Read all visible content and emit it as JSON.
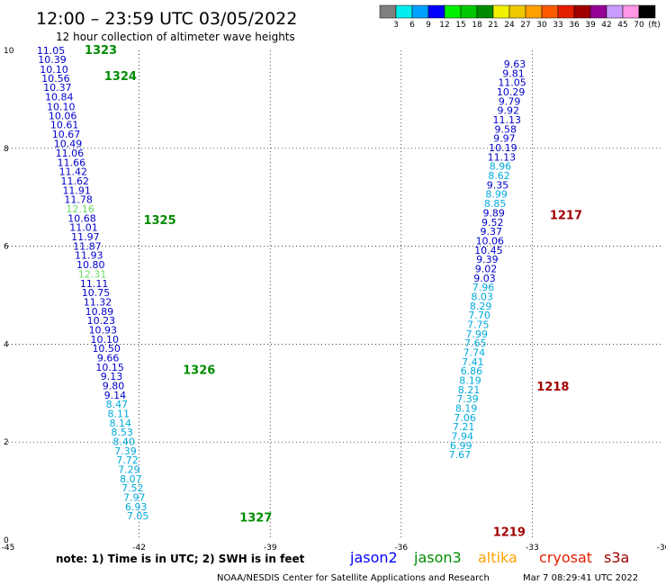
{
  "header": {
    "title": "12:00 – 23:59 UTC 03/05/2022",
    "subtitle": "12 hour collection of altimeter wave heights"
  },
  "colorbar": {
    "ticks": [
      "3",
      "6",
      "9",
      "12",
      "15",
      "18",
      "21",
      "24",
      "27",
      "30",
      "33",
      "36",
      "39",
      "42",
      "45",
      "70"
    ],
    "unit": "(ft)",
    "colors": [
      "#808080",
      "#00eeee",
      "#00a0ff",
      "#0000ff",
      "#00ee00",
      "#00c800",
      "#008c00",
      "#f0f000",
      "#f0c800",
      "#ffa000",
      "#ff5a00",
      "#e61e00",
      "#a00000",
      "#960096",
      "#c89bff",
      "#ff96e6",
      "#000000"
    ]
  },
  "footer": {
    "note": "note:  1) Time is in UTC;  2) SWH is in feet",
    "legend": [
      {
        "label": "jason2",
        "color": "#0000ff"
      },
      {
        "label": "jason3",
        "color": "#008c00"
      },
      {
        "label": "altika",
        "color": "#ffa000"
      },
      {
        "label": "cryosat",
        "color": "#e61e00"
      },
      {
        "label": "s3a",
        "color": "#a00000"
      }
    ],
    "credit": "NOAA/NESDIS Center for Satellite Applications and Research",
    "timestamp": "Mar  7 08:29:41 UTC 2022"
  },
  "chart_data": {
    "type": "scatter",
    "xlim": [
      -45,
      -30
    ],
    "ylim": [
      0,
      10
    ],
    "xticks": [
      "-45",
      "-42",
      "-39",
      "-36",
      "-33",
      "-30"
    ],
    "yticks": [
      "0",
      "2",
      "4",
      "6",
      "8",
      "10"
    ],
    "grid": true,
    "colors": {
      "deep": "#0000cc",
      "light": "#00aadd",
      "green": "#66dd66",
      "pass_green": "#008c00",
      "pass_red": "#a00000"
    },
    "passes": [
      {
        "label": "1323",
        "x": -43.25,
        "y": 9.93,
        "color": "pass_green"
      },
      {
        "label": "1324",
        "x": -42.8,
        "y": 9.39,
        "color": "pass_green"
      },
      {
        "label": "1325",
        "x": -41.9,
        "y": 6.45,
        "color": "pass_green"
      },
      {
        "label": "1326",
        "x": -41.0,
        "y": 3.39,
        "color": "pass_green"
      },
      {
        "label": "1327",
        "x": -39.7,
        "y": 0.38,
        "color": "pass_green"
      },
      {
        "label": "1217",
        "x": -32.6,
        "y": 6.55,
        "color": "pass_red"
      },
      {
        "label": "1218",
        "x": -32.9,
        "y": 3.05,
        "color": "pass_red"
      },
      {
        "label": "1219",
        "x": -33.9,
        "y": 0.08,
        "color": "pass_red"
      }
    ],
    "series": [
      {
        "points": [
          {
            "x": -44.02,
            "y": 9.93,
            "v": "11.05",
            "c": "deep"
          },
          {
            "x": -43.99,
            "y": 9.74,
            "v": "10.39",
            "c": "deep"
          },
          {
            "x": -43.95,
            "y": 9.54,
            "v": "10.10",
            "c": "deep"
          },
          {
            "x": -43.91,
            "y": 9.36,
            "v": "10.56",
            "c": "deep"
          },
          {
            "x": -43.87,
            "y": 9.17,
            "v": "10.37",
            "c": "deep"
          },
          {
            "x": -43.83,
            "y": 8.98,
            "v": "10.84",
            "c": "deep"
          },
          {
            "x": -43.79,
            "y": 8.78,
            "v": "10.10",
            "c": "deep"
          },
          {
            "x": -43.75,
            "y": 8.59,
            "v": "10.06",
            "c": "deep"
          },
          {
            "x": -43.71,
            "y": 8.41,
            "v": "10.61",
            "c": "deep"
          },
          {
            "x": -43.67,
            "y": 8.22,
            "v": "10.67",
            "c": "deep"
          },
          {
            "x": -43.63,
            "y": 8.02,
            "v": "10.49",
            "c": "deep"
          },
          {
            "x": -43.59,
            "y": 7.83,
            "v": "11.06",
            "c": "deep"
          },
          {
            "x": -43.55,
            "y": 7.64,
            "v": "11.66",
            "c": "deep"
          },
          {
            "x": -43.51,
            "y": 7.45,
            "v": "11.42",
            "c": "deep"
          },
          {
            "x": -43.47,
            "y": 7.26,
            "v": "11.62",
            "c": "deep"
          },
          {
            "x": -43.43,
            "y": 7.07,
            "v": "11.91",
            "c": "deep"
          },
          {
            "x": -43.39,
            "y": 6.88,
            "v": "11.78",
            "c": "deep"
          },
          {
            "x": -43.35,
            "y": 6.69,
            "v": "12.16",
            "c": "green"
          },
          {
            "x": -43.31,
            "y": 6.5,
            "v": "10.68",
            "c": "deep"
          },
          {
            "x": -43.27,
            "y": 6.31,
            "v": "11.01",
            "c": "deep"
          },
          {
            "x": -43.23,
            "y": 6.12,
            "v": "11.97",
            "c": "deep"
          },
          {
            "x": -43.19,
            "y": 5.93,
            "v": "11.87",
            "c": "deep"
          },
          {
            "x": -43.15,
            "y": 5.74,
            "v": "11.93",
            "c": "deep"
          },
          {
            "x": -43.11,
            "y": 5.55,
            "v": "10.80",
            "c": "deep"
          },
          {
            "x": -43.07,
            "y": 5.36,
            "v": "12.31",
            "c": "green"
          },
          {
            "x": -43.03,
            "y": 5.17,
            "v": "11.11",
            "c": "deep"
          },
          {
            "x": -42.99,
            "y": 4.98,
            "v": "10.75",
            "c": "deep"
          },
          {
            "x": -42.95,
            "y": 4.79,
            "v": "11.32",
            "c": "deep"
          },
          {
            "x": -42.91,
            "y": 4.6,
            "v": "10.89",
            "c": "deep"
          },
          {
            "x": -42.87,
            "y": 4.41,
            "v": "10.23",
            "c": "deep"
          },
          {
            "x": -42.83,
            "y": 4.22,
            "v": "10.93",
            "c": "deep"
          },
          {
            "x": -42.79,
            "y": 4.03,
            "v": "10.10",
            "c": "deep"
          },
          {
            "x": -42.75,
            "y": 3.84,
            "v": "10.50",
            "c": "deep"
          },
          {
            "x": -42.71,
            "y": 3.65,
            "v": "9.66",
            "c": "deep"
          },
          {
            "x": -42.67,
            "y": 3.46,
            "v": "10.15",
            "c": "deep"
          },
          {
            "x": -42.63,
            "y": 3.27,
            "v": "9.13",
            "c": "deep"
          },
          {
            "x": -42.59,
            "y": 3.08,
            "v": "9.80",
            "c": "deep"
          },
          {
            "x": -42.55,
            "y": 2.89,
            "v": "9.14",
            "c": "deep"
          },
          {
            "x": -42.51,
            "y": 2.7,
            "v": "8.47",
            "c": "light"
          },
          {
            "x": -42.47,
            "y": 2.51,
            "v": "8.11",
            "c": "light"
          },
          {
            "x": -42.43,
            "y": 2.32,
            "v": "8.14",
            "c": "light"
          },
          {
            "x": -42.39,
            "y": 2.13,
            "v": "8.53",
            "c": "light"
          },
          {
            "x": -42.35,
            "y": 1.94,
            "v": "8.40",
            "c": "light"
          },
          {
            "x": -42.31,
            "y": 1.75,
            "v": "7.39",
            "c": "light"
          },
          {
            "x": -42.27,
            "y": 1.56,
            "v": "7.72",
            "c": "light"
          },
          {
            "x": -42.23,
            "y": 1.37,
            "v": "7.29",
            "c": "light"
          },
          {
            "x": -42.19,
            "y": 1.18,
            "v": "8.07",
            "c": "light"
          },
          {
            "x": -42.15,
            "y": 0.99,
            "v": "7.52",
            "c": "light"
          },
          {
            "x": -42.11,
            "y": 0.8,
            "v": "7.97",
            "c": "light"
          },
          {
            "x": -42.07,
            "y": 0.61,
            "v": "6.93",
            "c": "light"
          },
          {
            "x": -42.03,
            "y": 0.42,
            "v": "7.05",
            "c": "light"
          }
        ]
      },
      {
        "points": [
          {
            "x": -33.4,
            "y": 9.65,
            "v": "9.63",
            "c": "deep"
          },
          {
            "x": -33.43,
            "y": 9.46,
            "v": "9.81",
            "c": "deep"
          },
          {
            "x": -33.46,
            "y": 9.27,
            "v": "11.05",
            "c": "deep"
          },
          {
            "x": -33.49,
            "y": 9.08,
            "v": "10.29",
            "c": "deep"
          },
          {
            "x": -33.52,
            "y": 8.89,
            "v": "9.79",
            "c": "deep"
          },
          {
            "x": -33.55,
            "y": 8.7,
            "v": "9.92",
            "c": "deep"
          },
          {
            "x": -33.58,
            "y": 8.51,
            "v": "11.13",
            "c": "deep"
          },
          {
            "x": -33.61,
            "y": 8.32,
            "v": "9.58",
            "c": "deep"
          },
          {
            "x": -33.64,
            "y": 8.13,
            "v": "9.97",
            "c": "deep"
          },
          {
            "x": -33.67,
            "y": 7.94,
            "v": "10.19",
            "c": "deep"
          },
          {
            "x": -33.7,
            "y": 7.75,
            "v": "11.13",
            "c": "deep"
          },
          {
            "x": -33.73,
            "y": 7.56,
            "v": "8.96",
            "c": "light"
          },
          {
            "x": -33.76,
            "y": 7.37,
            "v": "8.62",
            "c": "light"
          },
          {
            "x": -33.79,
            "y": 7.18,
            "v": "9.35",
            "c": "deep"
          },
          {
            "x": -33.82,
            "y": 6.99,
            "v": "8.99",
            "c": "light"
          },
          {
            "x": -33.85,
            "y": 6.8,
            "v": "8.85",
            "c": "light"
          },
          {
            "x": -33.88,
            "y": 6.61,
            "v": "9.89",
            "c": "deep"
          },
          {
            "x": -33.91,
            "y": 6.42,
            "v": "9.52",
            "c": "deep"
          },
          {
            "x": -33.94,
            "y": 6.23,
            "v": "9.37",
            "c": "deep"
          },
          {
            "x": -33.97,
            "y": 6.04,
            "v": "10.06",
            "c": "deep"
          },
          {
            "x": -34.0,
            "y": 5.85,
            "v": "10.45",
            "c": "deep"
          },
          {
            "x": -34.03,
            "y": 5.66,
            "v": "9.39",
            "c": "deep"
          },
          {
            "x": -34.06,
            "y": 5.47,
            "v": "9.02",
            "c": "deep"
          },
          {
            "x": -34.09,
            "y": 5.28,
            "v": "9.03",
            "c": "deep"
          },
          {
            "x": -34.12,
            "y": 5.09,
            "v": "7.96",
            "c": "light"
          },
          {
            "x": -34.15,
            "y": 4.9,
            "v": "8.03",
            "c": "light"
          },
          {
            "x": -34.18,
            "y": 4.71,
            "v": "8.29",
            "c": "light"
          },
          {
            "x": -34.21,
            "y": 4.52,
            "v": "7.70",
            "c": "light"
          },
          {
            "x": -34.24,
            "y": 4.33,
            "v": "7.75",
            "c": "light"
          },
          {
            "x": -34.27,
            "y": 4.14,
            "v": "7.99",
            "c": "light"
          },
          {
            "x": -34.3,
            "y": 3.95,
            "v": "7.65",
            "c": "light"
          },
          {
            "x": -34.33,
            "y": 3.76,
            "v": "7.74",
            "c": "light"
          },
          {
            "x": -34.36,
            "y": 3.57,
            "v": "7.41",
            "c": "light"
          },
          {
            "x": -34.39,
            "y": 3.38,
            "v": "6.86",
            "c": "light"
          },
          {
            "x": -34.42,
            "y": 3.19,
            "v": "8.19",
            "c": "light"
          },
          {
            "x": -34.45,
            "y": 3.0,
            "v": "8.21",
            "c": "light"
          },
          {
            "x": -34.48,
            "y": 2.81,
            "v": "7.39",
            "c": "light"
          },
          {
            "x": -34.51,
            "y": 2.62,
            "v": "8.19",
            "c": "light"
          },
          {
            "x": -34.54,
            "y": 2.43,
            "v": "7.06",
            "c": "light"
          },
          {
            "x": -34.57,
            "y": 2.24,
            "v": "7.21",
            "c": "light"
          },
          {
            "x": -34.6,
            "y": 2.05,
            "v": "7.94",
            "c": "light"
          },
          {
            "x": -34.63,
            "y": 1.86,
            "v": "6.99",
            "c": "light"
          },
          {
            "x": -34.66,
            "y": 1.67,
            "v": "7.67",
            "c": "light"
          }
        ]
      }
    ]
  }
}
